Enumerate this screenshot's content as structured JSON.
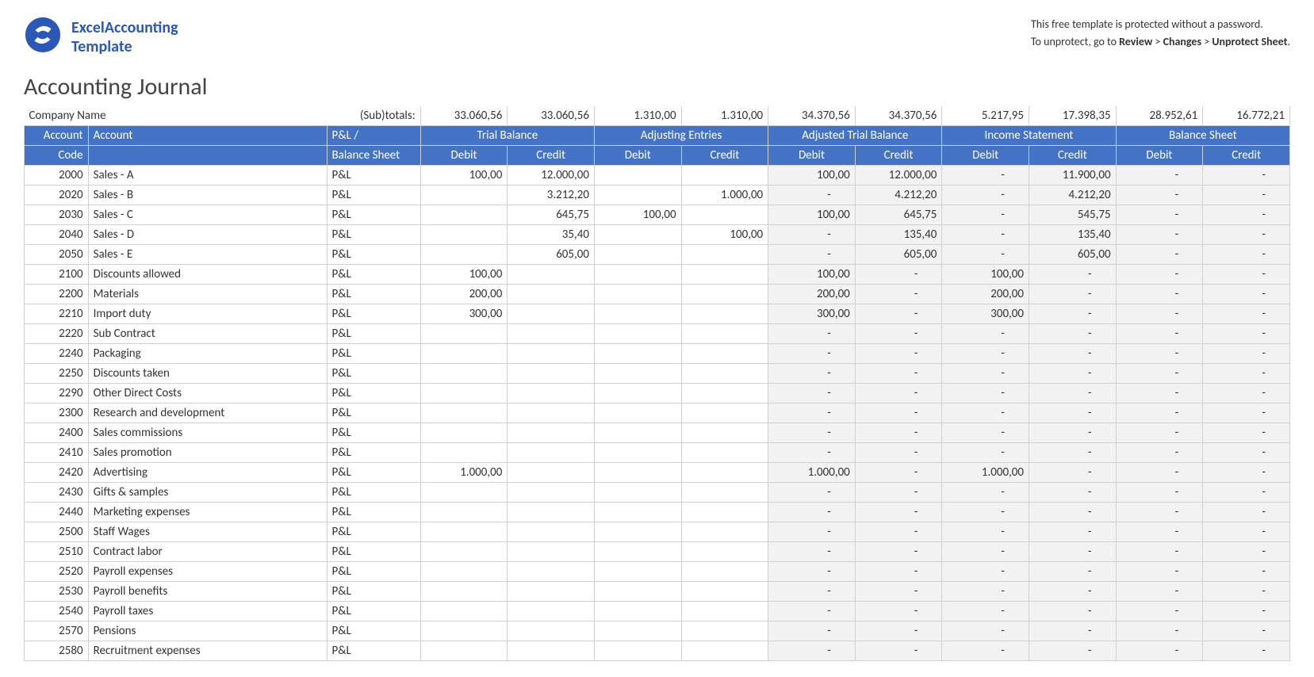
{
  "branding": {
    "word1": "Excel",
    "word2": "Accounting",
    "word3": "Template",
    "logo_color": "#2a58b4"
  },
  "help": {
    "line1": "This free template is protected without a password.",
    "line2_prefix": "To unprotect, go to ",
    "path1": "Review",
    "path2": "Changes",
    "path3": "Unprotect Sheet"
  },
  "title": "Accounting Journal",
  "company_label": "Company Name",
  "subtotals_label": "(Sub)totals:",
  "subtotals": [
    "33.060,56",
    "33.060,56",
    "1.310,00",
    "1.310,00",
    "34.370,56",
    "34.370,56",
    "5.217,95",
    "17.398,35",
    "28.952,61",
    "16.772,21"
  ],
  "headers": {
    "acct_code_1": "Account",
    "acct_code_2": "Code",
    "acct": "Account",
    "type_1": "P&L /",
    "type_2": "Balance Sheet",
    "groups": [
      "Trial Balance",
      "Adjusting Entries",
      "Adjusted Trial Balance",
      "Income Statement",
      "Balance Sheet"
    ],
    "debit": "Debit",
    "credit": "Credit"
  },
  "colors": {
    "header_bg": "#4472c4",
    "header_fg": "#ffffff",
    "grid": "#d0d0d0",
    "shaded": "#f2f2f2",
    "text": "#333333"
  },
  "rows": [
    {
      "code": "2000",
      "acct": "Sales - A",
      "type": "P&L",
      "v": [
        "100,00",
        "12.000,00",
        "",
        "",
        "100,00",
        "12.000,00",
        "-",
        "11.900,00",
        "-",
        "-"
      ]
    },
    {
      "code": "2020",
      "acct": "Sales - B",
      "type": "P&L",
      "v": [
        "",
        "3.212,20",
        "",
        "1.000,00",
        "-",
        "4.212,20",
        "-",
        "4.212,20",
        "-",
        "-"
      ]
    },
    {
      "code": "2030",
      "acct": "Sales - C",
      "type": "P&L",
      "v": [
        "",
        "645,75",
        "100,00",
        "",
        "100,00",
        "645,75",
        "-",
        "545,75",
        "-",
        "-"
      ]
    },
    {
      "code": "2040",
      "acct": "Sales - D",
      "type": "P&L",
      "v": [
        "",
        "35,40",
        "",
        "100,00",
        "-",
        "135,40",
        "-",
        "135,40",
        "-",
        "-"
      ]
    },
    {
      "code": "2050",
      "acct": "Sales - E",
      "type": "P&L",
      "v": [
        "",
        "605,00",
        "",
        "",
        "-",
        "605,00",
        "-",
        "605,00",
        "-",
        "-"
      ]
    },
    {
      "code": "2100",
      "acct": "Discounts allowed",
      "type": "P&L",
      "v": [
        "100,00",
        "",
        "",
        "",
        "100,00",
        "-",
        "100,00",
        "-",
        "-",
        "-"
      ]
    },
    {
      "code": "2200",
      "acct": "Materials",
      "type": "P&L",
      "v": [
        "200,00",
        "",
        "",
        "",
        "200,00",
        "-",
        "200,00",
        "-",
        "-",
        "-"
      ]
    },
    {
      "code": "2210",
      "acct": "Import duty",
      "type": "P&L",
      "v": [
        "300,00",
        "",
        "",
        "",
        "300,00",
        "-",
        "300,00",
        "-",
        "-",
        "-"
      ]
    },
    {
      "code": "2220",
      "acct": "Sub Contract",
      "type": "P&L",
      "v": [
        "",
        "",
        "",
        "",
        "-",
        "-",
        "-",
        "-",
        "-",
        "-"
      ]
    },
    {
      "code": "2240",
      "acct": "Packaging",
      "type": "P&L",
      "v": [
        "",
        "",
        "",
        "",
        "-",
        "-",
        "-",
        "-",
        "-",
        "-"
      ]
    },
    {
      "code": "2250",
      "acct": "Discounts taken",
      "type": "P&L",
      "v": [
        "",
        "",
        "",
        "",
        "-",
        "-",
        "-",
        "-",
        "-",
        "-"
      ]
    },
    {
      "code": "2290",
      "acct": "Other Direct Costs",
      "type": "P&L",
      "v": [
        "",
        "",
        "",
        "",
        "-",
        "-",
        "-",
        "-",
        "-",
        "-"
      ]
    },
    {
      "code": "2300",
      "acct": "Research and development",
      "type": "P&L",
      "v": [
        "",
        "",
        "",
        "",
        "-",
        "-",
        "-",
        "-",
        "-",
        "-"
      ]
    },
    {
      "code": "2400",
      "acct": "Sales commissions",
      "type": "P&L",
      "v": [
        "",
        "",
        "",
        "",
        "-",
        "-",
        "-",
        "-",
        "-",
        "-"
      ]
    },
    {
      "code": "2410",
      "acct": "Sales promotion",
      "type": "P&L",
      "v": [
        "",
        "",
        "",
        "",
        "-",
        "-",
        "-",
        "-",
        "-",
        "-"
      ]
    },
    {
      "code": "2420",
      "acct": "Advertising",
      "type": "P&L",
      "v": [
        "1.000,00",
        "",
        "",
        "",
        "1.000,00",
        "-",
        "1.000,00",
        "-",
        "-",
        "-"
      ]
    },
    {
      "code": "2430",
      "acct": "Gifts & samples",
      "type": "P&L",
      "v": [
        "",
        "",
        "",
        "",
        "-",
        "-",
        "-",
        "-",
        "-",
        "-"
      ]
    },
    {
      "code": "2440",
      "acct": "Marketing expenses",
      "type": "P&L",
      "v": [
        "",
        "",
        "",
        "",
        "-",
        "-",
        "-",
        "-",
        "-",
        "-"
      ]
    },
    {
      "code": "2500",
      "acct": "Staff Wages",
      "type": "P&L",
      "v": [
        "",
        "",
        "",
        "",
        "-",
        "-",
        "-",
        "-",
        "-",
        "-"
      ]
    },
    {
      "code": "2510",
      "acct": "Contract labor",
      "type": "P&L",
      "v": [
        "",
        "",
        "",
        "",
        "-",
        "-",
        "-",
        "-",
        "-",
        "-"
      ]
    },
    {
      "code": "2520",
      "acct": "Payroll expenses",
      "type": "P&L",
      "v": [
        "",
        "",
        "",
        "",
        "-",
        "-",
        "-",
        "-",
        "-",
        "-"
      ]
    },
    {
      "code": "2530",
      "acct": "Payroll benefits",
      "type": "P&L",
      "v": [
        "",
        "",
        "",
        "",
        "-",
        "-",
        "-",
        "-",
        "-",
        "-"
      ]
    },
    {
      "code": "2540",
      "acct": "Payroll taxes",
      "type": "P&L",
      "v": [
        "",
        "",
        "",
        "",
        "-",
        "-",
        "-",
        "-",
        "-",
        "-"
      ]
    },
    {
      "code": "2570",
      "acct": "Pensions",
      "type": "P&L",
      "v": [
        "",
        "",
        "",
        "",
        "-",
        "-",
        "-",
        "-",
        "-",
        "-"
      ]
    },
    {
      "code": "2580",
      "acct": "Recruitment expenses",
      "type": "P&L",
      "v": [
        "",
        "",
        "",
        "",
        "-",
        "-",
        "-",
        "-",
        "-",
        "-"
      ]
    }
  ],
  "shaded_value_cols": [
    4,
    5,
    6,
    7,
    8,
    9
  ]
}
